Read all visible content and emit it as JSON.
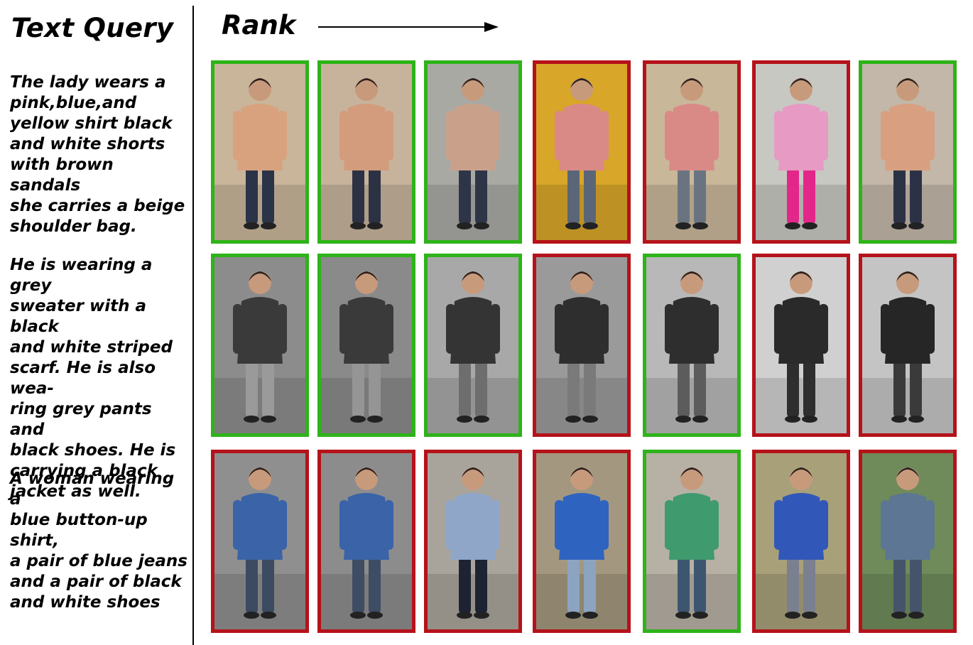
{
  "header": {
    "query_label": "Text Query",
    "rank_label": "Rank"
  },
  "colors": {
    "match_border": "#2eb31a",
    "mismatch_border": "#b5121a"
  },
  "queries": [
    {
      "text": "The lady wears a\npink,blue,and\nyellow shirt black\nand white shorts\nwith brown sandals\nshe carries a beige\nshoulder bag.",
      "results": [
        {
          "match": true,
          "top": "#d9a27f",
          "bottom": "#2b3348",
          "bg": "#c9b59a"
        },
        {
          "match": true,
          "top": "#d39c7c",
          "bottom": "#2c3244",
          "bg": "#c7b39b"
        },
        {
          "match": true,
          "top": "#c9a18a",
          "bottom": "#2f3548",
          "bg": "#a9a9a4"
        },
        {
          "match": false,
          "top": "#d98a87",
          "bottom": "#5a6677",
          "bg": "#d8a628"
        },
        {
          "match": false,
          "top": "#d98a87",
          "bottom": "#6a7481",
          "bg": "#c9b79a"
        },
        {
          "match": false,
          "top": "#e69ac4",
          "bottom": "#e3268a",
          "bg": "#c8c8c2"
        },
        {
          "match": true,
          "top": "#d8a080",
          "bottom": "#2c3246",
          "bg": "#c2b7a8"
        }
      ]
    },
    {
      "text": "He is wearing a grey\nsweater with a black\nand white striped\nscarf. He is also wea-\nring grey pants and\nblack shoes. He is\ncarrying a black\njacket as well.",
      "results": [
        {
          "match": true,
          "top": "#3a3a3a",
          "bottom": "#9a9a9a",
          "bg": "#8c8c8c"
        },
        {
          "match": true,
          "top": "#3a3a3a",
          "bottom": "#959595",
          "bg": "#8a8a8a"
        },
        {
          "match": true,
          "top": "#343434",
          "bottom": "#6e6e6e",
          "bg": "#a8a8a8"
        },
        {
          "match": false,
          "top": "#2e2e2e",
          "bottom": "#7a7a7a",
          "bg": "#9a9a9a"
        },
        {
          "match": true,
          "top": "#2e2e2e",
          "bottom": "#5c5c5c",
          "bg": "#b8b8b8"
        },
        {
          "match": false,
          "top": "#2a2a2a",
          "bottom": "#2e2e2e",
          "bg": "#d0d0d0"
        },
        {
          "match": false,
          "top": "#262626",
          "bottom": "#3a3a3a",
          "bg": "#c4c4c4"
        }
      ]
    },
    {
      "text": "A woman wearing a\nblue button-up shirt,\na pair of blue jeans\nand a pair of black\nand white shoes",
      "results": [
        {
          "match": false,
          "top": "#3a63a8",
          "bottom": "#3c4a62",
          "bg": "#8f8f8f"
        },
        {
          "match": false,
          "top": "#3a63a8",
          "bottom": "#3e4c64",
          "bg": "#8c8c8c"
        },
        {
          "match": false,
          "top": "#8fa6c9",
          "bottom": "#1d2333",
          "bg": "#a9a49b"
        },
        {
          "match": false,
          "top": "#2f63c0",
          "bottom": "#8ca4c0",
          "bg": "#a3987f"
        },
        {
          "match": true,
          "top": "#3f9a6e",
          "bottom": "#3d5670",
          "bg": "#b7b0a4"
        },
        {
          "match": false,
          "top": "#3157b8",
          "bottom": "#7a8090",
          "bg": "#a8a079"
        },
        {
          "match": false,
          "top": "#5d7693",
          "bottom": "#46546b",
          "bg": "#6f8b5a"
        }
      ]
    }
  ]
}
